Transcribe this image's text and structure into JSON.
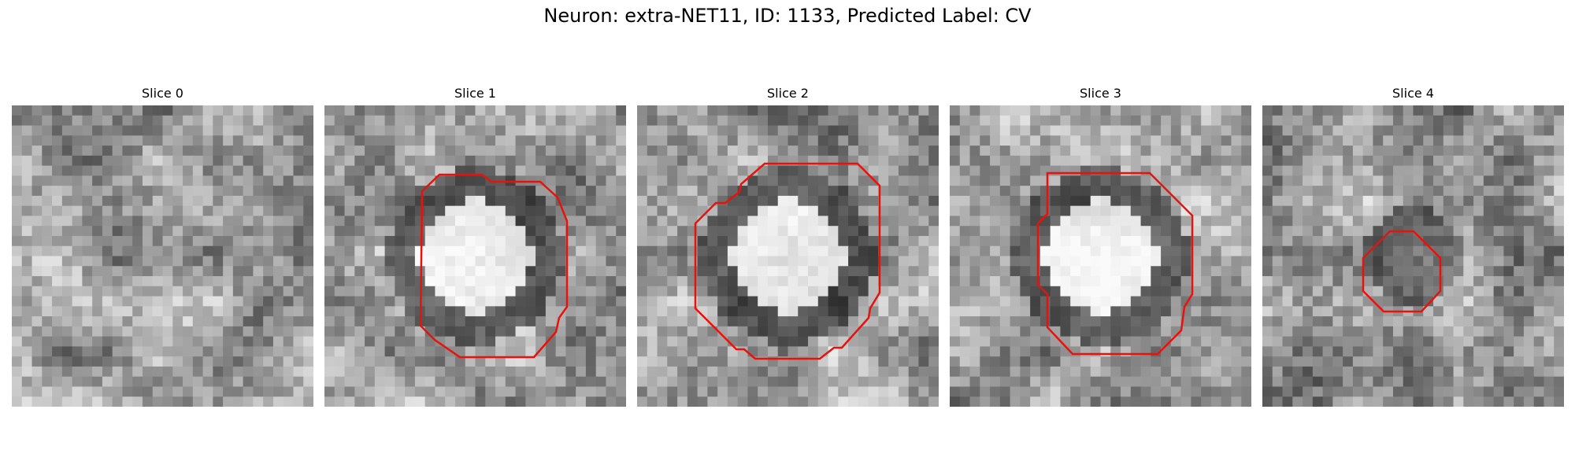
{
  "figure": {
    "title": "Neuron: extra-NET11, ID: 1133, Predicted Label: CV"
  },
  "panels": [
    {
      "title": "Slice 0",
      "contour": false,
      "seed": 11,
      "center_brightness": 0.0
    },
    {
      "title": "Slice 1",
      "contour": true,
      "seed": 23,
      "center_brightness": 0.55
    },
    {
      "title": "Slice 2",
      "contour": true,
      "seed": 37,
      "center_brightness": 0.5
    },
    {
      "title": "Slice 3",
      "contour": true,
      "seed": 51,
      "center_brightness": 0.6
    },
    {
      "title": "Slice 4",
      "contour": true,
      "seed": 67,
      "center_brightness": -0.25
    }
  ],
  "style": {
    "contour_color": "#e8120c",
    "colormap": "gray"
  }
}
